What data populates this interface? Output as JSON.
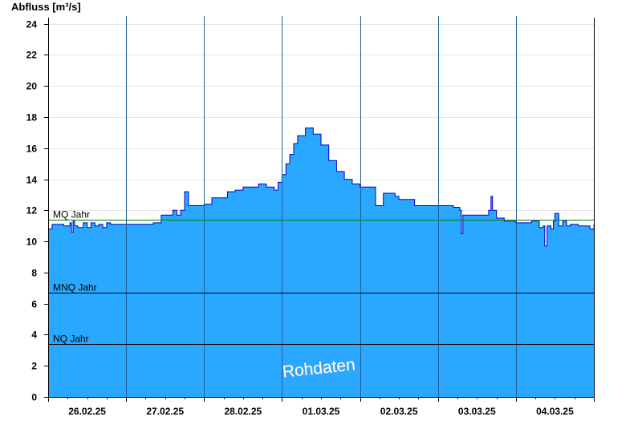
{
  "chart_data": {
    "type": "area",
    "title": "",
    "ylabel": "Abfluss [m³/s]",
    "xlabel": "",
    "ylim": [
      0,
      24.5
    ],
    "yticks": [
      0,
      2,
      4,
      6,
      8,
      10,
      12,
      14,
      16,
      18,
      20,
      22,
      24
    ],
    "xlim": [
      0,
      7
    ],
    "xtick_labels": [
      "26.02.25",
      "27.02.25",
      "28.02.25",
      "01.03.25",
      "02.03.25",
      "03.03.25",
      "04.03.25"
    ],
    "grid": {
      "horizontal": true,
      "vertical_day_separators": true
    },
    "fill_color": "#2aa7ff",
    "line_color": "#0000cc",
    "watermark": "Rohdaten",
    "reference_lines": [
      {
        "name": "MQ Jahr",
        "value": 11.4,
        "color": "#008000"
      },
      {
        "name": "MNQ Jahr",
        "value": 6.7,
        "color": "#000000"
      },
      {
        "name": "NQ Jahr",
        "value": 3.4,
        "color": "#000000"
      }
    ],
    "series": [
      {
        "x": [
          0,
          0.05,
          0.1,
          0.2,
          0.28,
          0.3,
          0.32,
          0.34,
          0.38,
          0.45,
          0.5,
          0.55,
          0.6,
          0.65,
          0.7,
          0.75,
          0.8,
          0.85,
          0.9,
          0.95,
          1.0,
          1.1,
          1.2,
          1.3,
          1.35,
          1.45,
          1.55,
          1.6,
          1.65,
          1.7,
          1.75,
          1.8,
          1.9,
          2.0,
          2.1,
          2.2,
          2.3,
          2.4,
          2.5,
          2.6,
          2.7,
          2.8,
          2.85,
          2.9,
          2.95,
          3.0,
          3.05,
          3.1,
          3.15,
          3.2,
          3.3,
          3.4,
          3.5,
          3.6,
          3.7,
          3.8,
          3.9,
          4.0,
          4.1,
          4.15,
          4.2,
          4.3,
          4.45,
          4.5,
          4.6,
          4.7,
          4.8,
          5.0,
          5.2,
          5.28,
          5.3,
          5.32,
          5.4,
          5.5,
          5.6,
          5.65,
          5.68,
          5.7,
          5.75,
          5.85,
          6.0,
          6.1,
          6.2,
          6.3,
          6.35,
          6.37,
          6.4,
          6.45,
          6.48,
          6.5,
          6.55,
          6.6,
          6.65,
          6.7,
          6.8,
          6.9,
          6.95,
          7.0
        ],
        "y": [
          10.8,
          11.1,
          11.1,
          11.0,
          11.2,
          10.6,
          11.3,
          11.0,
          10.9,
          11.2,
          10.9,
          11.2,
          11.0,
          11.1,
          10.9,
          11.2,
          11.1,
          11.1,
          11.1,
          11.1,
          11.1,
          11.1,
          11.1,
          11.1,
          11.2,
          11.7,
          11.7,
          12.0,
          11.7,
          12.0,
          13.2,
          12.3,
          12.3,
          12.4,
          12.8,
          12.8,
          13.2,
          13.3,
          13.5,
          13.5,
          13.7,
          13.5,
          13.5,
          13.3,
          13.8,
          14.3,
          15.0,
          15.6,
          16.3,
          16.8,
          17.3,
          16.9,
          16.2,
          15.2,
          14.5,
          14.0,
          13.7,
          13.5,
          13.5,
          13.5,
          12.3,
          13.1,
          12.9,
          12.7,
          12.7,
          12.3,
          12.3,
          12.3,
          12.2,
          12.0,
          10.5,
          11.7,
          11.7,
          11.7,
          11.7,
          12.0,
          12.9,
          12.0,
          11.5,
          11.3,
          11.2,
          11.2,
          11.3,
          10.9,
          11.0,
          9.7,
          11.0,
          10.8,
          11.3,
          11.8,
          11.0,
          11.3,
          11.0,
          11.1,
          11.0,
          11.0,
          10.8,
          11.1
        ]
      }
    ]
  }
}
